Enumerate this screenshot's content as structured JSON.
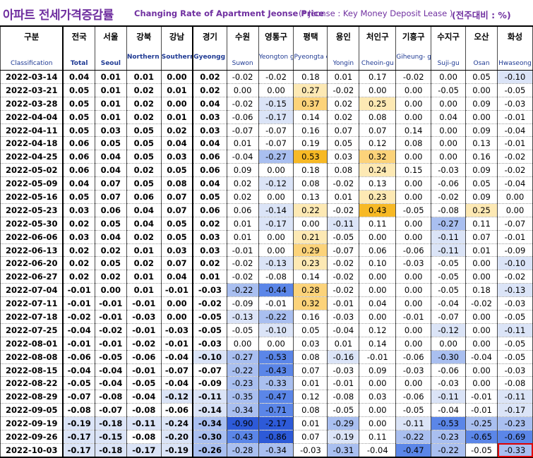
{
  "title": {
    "korean": "아파트 전세가격증감률",
    "english": "Changing Rate of Apartment Jeonse Price",
    "note": "(* Jeonse : Key Money Deposit Lease )",
    "unit": "(전주대비 : %)"
  },
  "columns": [
    {
      "ko": "구분",
      "en": "Classification"
    },
    {
      "ko": "전국",
      "en": "Total"
    },
    {
      "ko": "서울",
      "en": "Seoul"
    },
    {
      "ko": "강북",
      "en": "Northern seoul"
    },
    {
      "ko": "강남",
      "en": "Southern Seoul"
    },
    {
      "ko": "경기",
      "en": "Gyeongg i-do"
    },
    {
      "ko": "수원",
      "en": "Suwon"
    },
    {
      "ko": "영통구",
      "en": "Yeongton g-gu"
    },
    {
      "ko": "평택",
      "en": "Pyeongta ek"
    },
    {
      "ko": "용인",
      "en": "Yongin"
    },
    {
      "ko": "처인구",
      "en": "Cheoin-gu"
    },
    {
      "ko": "기흥구",
      "en": "Giheung- gu"
    },
    {
      "ko": "수지구",
      "en": "Suji-gu"
    },
    {
      "ko": "오산",
      "en": "Osan"
    },
    {
      "ko": "화성",
      "en": "Hwaseong"
    }
  ],
  "rows": [
    {
      "date": "2022-03-14",
      "v": [
        "0.04",
        "0.01",
        "0.01",
        "0.00",
        "0.02",
        "-0.02",
        "-0.02",
        "0.18",
        "0.01",
        "0.17",
        "-0.02",
        "0.00",
        "0.05",
        "-0.10"
      ]
    },
    {
      "date": "2022-03-21",
      "v": [
        "0.05",
        "0.01",
        "0.02",
        "0.01",
        "0.02",
        "0.00",
        "0.00",
        "0.27",
        "-0.02",
        "0.00",
        "0.00",
        "-0.05",
        "0.00",
        "-0.05"
      ]
    },
    {
      "date": "2022-03-28",
      "v": [
        "0.05",
        "0.01",
        "0.02",
        "0.00",
        "0.04",
        "-0.02",
        "-0.15",
        "0.37",
        "0.02",
        "0.25",
        "0.00",
        "0.00",
        "0.09",
        "-0.03"
      ]
    },
    {
      "date": "2022-04-04",
      "v": [
        "0.05",
        "0.01",
        "0.02",
        "0.01",
        "0.03",
        "-0.06",
        "-0.17",
        "0.14",
        "0.02",
        "0.08",
        "0.00",
        "0.04",
        "0.00",
        "-0.01"
      ]
    },
    {
      "date": "2022-04-11",
      "v": [
        "0.05",
        "0.03",
        "0.05",
        "0.02",
        "0.03",
        "-0.07",
        "-0.07",
        "0.16",
        "0.07",
        "0.07",
        "0.14",
        "0.00",
        "0.09",
        "-0.04"
      ]
    },
    {
      "date": "2022-04-18",
      "v": [
        "0.06",
        "0.05",
        "0.05",
        "0.04",
        "0.04",
        "0.01",
        "-0.07",
        "0.19",
        "0.05",
        "0.12",
        "0.08",
        "0.00",
        "0.13",
        "-0.01"
      ]
    },
    {
      "date": "2022-04-25",
      "v": [
        "0.06",
        "0.04",
        "0.05",
        "0.03",
        "0.06",
        "-0.04",
        "-0.27",
        "0.53",
        "0.03",
        "0.32",
        "0.00",
        "0.00",
        "0.16",
        "-0.02"
      ]
    },
    {
      "date": "2022-05-02",
      "v": [
        "0.06",
        "0.04",
        "0.02",
        "0.05",
        "0.06",
        "0.09",
        "0.00",
        "0.18",
        "0.08",
        "0.24",
        "0.15",
        "-0.03",
        "0.09",
        "-0.02"
      ]
    },
    {
      "date": "2022-05-09",
      "v": [
        "0.04",
        "0.07",
        "0.05",
        "0.08",
        "0.04",
        "0.02",
        "-0.12",
        "0.08",
        "-0.02",
        "0.13",
        "0.00",
        "-0.06",
        "0.05",
        "-0.04"
      ]
    },
    {
      "date": "2022-05-16",
      "v": [
        "0.05",
        "0.07",
        "0.06",
        "0.07",
        "0.05",
        "0.02",
        "0.00",
        "0.13",
        "0.01",
        "0.23",
        "0.00",
        "-0.02",
        "0.09",
        "0.00"
      ]
    },
    {
      "date": "2022-05-23",
      "v": [
        "0.03",
        "0.06",
        "0.04",
        "0.07",
        "0.06",
        "0.06",
        "-0.14",
        "0.22",
        "-0.02",
        "0.43",
        "-0.05",
        "-0.08",
        "0.25",
        "0.00"
      ]
    },
    {
      "date": "2022-05-30",
      "v": [
        "0.02",
        "0.05",
        "0.04",
        "0.05",
        "0.02",
        "0.01",
        "-0.17",
        "0.00",
        "-0.11",
        "0.11",
        "0.00",
        "-0.27",
        "0.11",
        "-0.07"
      ]
    },
    {
      "date": "2022-06-06",
      "v": [
        "0.03",
        "0.04",
        "0.02",
        "0.05",
        "0.03",
        "0.01",
        "0.00",
        "0.21",
        "-0.05",
        "0.00",
        "0.00",
        "-0.11",
        "0.07",
        "-0.01"
      ]
    },
    {
      "date": "2022-06-13",
      "v": [
        "0.02",
        "0.02",
        "0.01",
        "0.03",
        "0.03",
        "-0.01",
        "0.00",
        "0.29",
        "-0.07",
        "0.06",
        "-0.06",
        "-0.11",
        "0.01",
        "-0.09"
      ]
    },
    {
      "date": "2022-06-20",
      "v": [
        "0.02",
        "0.05",
        "0.02",
        "0.07",
        "0.02",
        "-0.02",
        "-0.13",
        "0.23",
        "-0.02",
        "0.10",
        "-0.03",
        "-0.05",
        "0.00",
        "-0.10"
      ]
    },
    {
      "date": "2022-06-27",
      "v": [
        "0.02",
        "0.02",
        "0.01",
        "0.04",
        "0.01",
        "-0.02",
        "-0.08",
        "0.14",
        "-0.02",
        "0.00",
        "0.00",
        "-0.05",
        "0.00",
        "-0.02"
      ]
    },
    {
      "date": "2022-07-04",
      "v": [
        "-0.01",
        "0.00",
        "0.01",
        "-0.01",
        "-0.03",
        "-0.22",
        "-0.44",
        "0.28",
        "-0.02",
        "0.00",
        "0.00",
        "-0.05",
        "0.18",
        "-0.13"
      ]
    },
    {
      "date": "2022-07-11",
      "v": [
        "-0.01",
        "-0.01",
        "-0.01",
        "0.00",
        "-0.02",
        "-0.09",
        "-0.01",
        "0.32",
        "-0.01",
        "0.04",
        "0.00",
        "-0.04",
        "-0.02",
        "-0.03"
      ]
    },
    {
      "date": "2022-07-18",
      "v": [
        "-0.02",
        "-0.01",
        "-0.03",
        "0.00",
        "-0.05",
        "-0.13",
        "-0.22",
        "0.16",
        "-0.03",
        "0.00",
        "-0.01",
        "-0.07",
        "0.00",
        "-0.05"
      ]
    },
    {
      "date": "2022-07-25",
      "v": [
        "-0.04",
        "-0.02",
        "-0.01",
        "-0.03",
        "-0.05",
        "-0.05",
        "-0.10",
        "0.05",
        "-0.04",
        "0.12",
        "0.00",
        "-0.12",
        "0.00",
        "-0.11"
      ]
    },
    {
      "date": "2022-08-01",
      "v": [
        "-0.01",
        "-0.01",
        "-0.02",
        "-0.01",
        "-0.03",
        "0.00",
        "0.00",
        "0.03",
        "0.01",
        "0.14",
        "0.00",
        "0.00",
        "0.00",
        "-0.05"
      ]
    },
    {
      "date": "2022-08-08",
      "v": [
        "-0.06",
        "-0.05",
        "-0.06",
        "-0.04",
        "-0.10",
        "-0.27",
        "-0.53",
        "0.08",
        "-0.16",
        "-0.01",
        "-0.06",
        "-0.30",
        "-0.04",
        "-0.05"
      ]
    },
    {
      "date": "2022-08-15",
      "v": [
        "-0.04",
        "-0.04",
        "-0.01",
        "-0.07",
        "-0.07",
        "-0.22",
        "-0.43",
        "0.07",
        "-0.03",
        "0.09",
        "-0.03",
        "-0.06",
        "0.00",
        "-0.03"
      ]
    },
    {
      "date": "2022-08-22",
      "v": [
        "-0.05",
        "-0.04",
        "-0.05",
        "-0.04",
        "-0.09",
        "-0.23",
        "-0.33",
        "0.01",
        "-0.01",
        "0.00",
        "0.00",
        "-0.03",
        "0.00",
        "-0.08"
      ]
    },
    {
      "date": "2022-08-29",
      "v": [
        "-0.07",
        "-0.08",
        "-0.04",
        "-0.12",
        "-0.11",
        "-0.35",
        "-0.47",
        "0.12",
        "-0.08",
        "0.03",
        "-0.06",
        "-0.11",
        "-0.01",
        "-0.11"
      ]
    },
    {
      "date": "2022-09-05",
      "v": [
        "-0.08",
        "-0.07",
        "-0.08",
        "-0.06",
        "-0.14",
        "-0.34",
        "-0.71",
        "0.08",
        "-0.05",
        "0.00",
        "-0.05",
        "-0.04",
        "-0.01",
        "-0.17"
      ]
    },
    {
      "date": "2022-09-19",
      "v": [
        "-0.19",
        "-0.18",
        "-0.11",
        "-0.24",
        "-0.34",
        "-0.90",
        "-2.17",
        "0.01",
        "-0.29",
        "0.00",
        "-0.11",
        "-0.53",
        "-0.25",
        "-0.23"
      ]
    },
    {
      "date": "2022-09-26",
      "v": [
        "-0.17",
        "-0.15",
        "-0.08",
        "-0.20",
        "-0.30",
        "-0.43",
        "-0.86",
        "0.07",
        "-0.19",
        "0.11",
        "-0.22",
        "-0.23",
        "-0.65",
        "-0.69"
      ]
    },
    {
      "date": "2022-10-03",
      "v": [
        "-0.17",
        "-0.18",
        "-0.17",
        "-0.19",
        "-0.26",
        "-0.28",
        "-0.34",
        "-0.03",
        "-0.31",
        "-0.04",
        "-0.47",
        "-0.22",
        "-0.05",
        "-0.33"
      ]
    }
  ],
  "colors": {
    "title": "#7030a0",
    "header_en": "#1f3a93",
    "pos_light": "#fde9b4",
    "pos_mid": "#fcd37a",
    "pos_strong": "#f7b925",
    "neg_light": "#dbe4f7",
    "neg_mid": "#a9bff0",
    "neg_strong": "#5b86e8",
    "neg_deep": "#2d5ad8",
    "highlight_border": "#e00000"
  }
}
